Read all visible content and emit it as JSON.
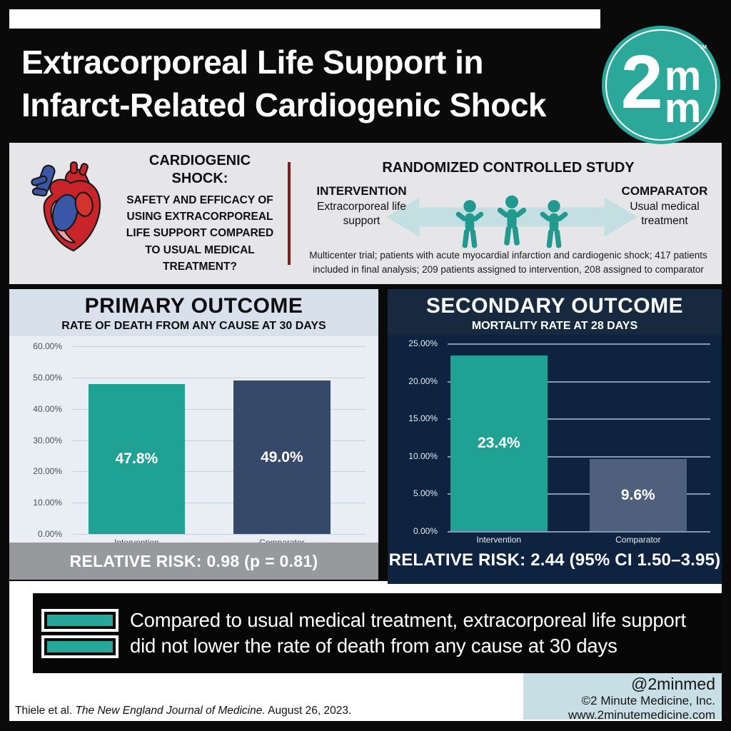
{
  "header": {
    "title_line1": "Extracorporeal Life Support in",
    "title_line2": "Infarct-Related Cardiogenic Shock",
    "logo": {
      "big": "2",
      "m_top": "m",
      "m_bottom": "m",
      "tm": "™"
    }
  },
  "study": {
    "question_title": "CARDIOGENIC SHOCK:",
    "question_body": "SAFETY AND EFFICACY OF USING EXTRACORPOREAL LIFE SUPPORT COMPARED TO USUAL MEDICAL TREATMENT?",
    "design_title": "RANDOMIZED CONTROLLED STUDY",
    "intervention_label": "INTERVENTION",
    "intervention_desc": "Extracorporeal life support",
    "comparator_label": "COMPARATOR",
    "comparator_desc": "Usual medical treatment",
    "note_line1": "Multicenter trial; patients with acute myocardial infarction and cardiogenic shock; 417 patients",
    "note_line2": "included in final analysis; 209 patients assigned to intervention, 208 assigned to comparator"
  },
  "chart_data": [
    {
      "type": "bar",
      "title": "PRIMARY OUTCOME",
      "subtitle": "RATE OF DEATH FROM ANY CAUSE AT 30 DAYS",
      "categories": [
        "Intervention",
        "Comparator"
      ],
      "values": [
        47.8,
        49.0
      ],
      "value_labels": [
        "47.8%",
        "49.0%"
      ],
      "bar_colors": [
        "#1FA294",
        "#36496A"
      ],
      "ylim": [
        0,
        60
      ],
      "yticks": [
        "60.00%",
        "50.00%",
        "40.00%",
        "30.00%",
        "20.00%",
        "10.00%",
        "0.00%"
      ],
      "grid": true,
      "legend": "none",
      "annotation": "RELATIVE RISK: 0.98 (p = 0.81)"
    },
    {
      "type": "bar",
      "title": "SECONDARY OUTCOME",
      "subtitle": "MORTALITY RATE AT 28 DAYS",
      "categories": [
        "Intervention",
        "Comparator"
      ],
      "values": [
        23.4,
        9.6
      ],
      "value_labels": [
        "23.4%",
        "9.6%"
      ],
      "bar_colors": [
        "#1FA294",
        "#4E607C"
      ],
      "ylim": [
        0,
        25
      ],
      "yticks": [
        "25.00%",
        "20.00%",
        "15.00%",
        "10.00%",
        "5.00%",
        "0.00%"
      ],
      "grid": true,
      "legend": "none",
      "annotation": "RELATIVE RISK: 2.44 (95% CI 1.50–3.95)"
    }
  ],
  "summary": {
    "line1": "Compared to usual medical treatment, extracorporeal life support",
    "line2": "did not lower the rate of death from any cause at 30 days"
  },
  "footer": {
    "handle": "@2minmed",
    "company": "©2 Minute Medicine, Inc.",
    "website": "www.2minutemedicine.com",
    "citation_authors": "Thiele et al. ",
    "citation_journal": "The New England Journal of Medicine.",
    "citation_date": " August 26, 2023."
  },
  "colors": {
    "brand_teal": "#1FA294",
    "logo_teal": "#2CA89B",
    "navy_panel": "#0D2340",
    "bar_navy": "#36496A",
    "bar_slate": "#4E607C",
    "maroon_divider": "#7A1E1E",
    "arrow_light_teal": "#C3DFE2",
    "gray_strip": "#97999C",
    "social_box_bg": "#C6DEE4"
  }
}
